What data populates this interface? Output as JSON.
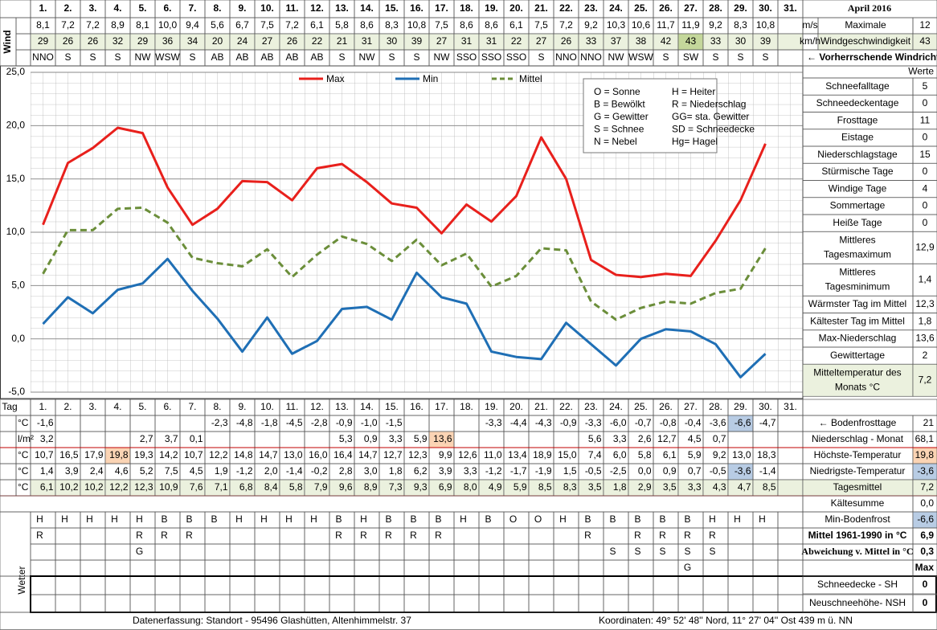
{
  "title": "April 2016",
  "wind": {
    "label": "Wind",
    "unit_ms": "m/s",
    "unit_kmh": "km/h",
    "ms": [
      "8,1",
      "7,2",
      "7,2",
      "8,9",
      "8,1",
      "10,0",
      "9,4",
      "5,6",
      "6,7",
      "7,5",
      "7,2",
      "6,1",
      "5,8",
      "8,6",
      "8,3",
      "10,8",
      "7,5",
      "8,6",
      "8,6",
      "6,1",
      "7,5",
      "7,2",
      "9,2",
      "10,3",
      "10,6",
      "11,7",
      "11,9",
      "9,2",
      "8,3",
      "10,8",
      null
    ],
    "kmh": [
      "29",
      "26",
      "26",
      "32",
      "29",
      "36",
      "34",
      "20",
      "24",
      "27",
      "26",
      "22",
      "21",
      "31",
      "30",
      "39",
      "27",
      "31",
      "31",
      "22",
      "27",
      "26",
      "33",
      "37",
      "38",
      "42",
      "43",
      "33",
      "30",
      "39",
      null
    ],
    "direction": [
      "NNO",
      "S",
      "S",
      "S",
      "NW",
      "WSW",
      "S",
      "AB",
      "AB",
      "AB",
      "AB",
      "AB",
      "S",
      "NW",
      "S",
      "S",
      "NW",
      "SSO",
      "SSO",
      "SSO",
      "S",
      "NNO",
      "NNO",
      "NW",
      "WSW",
      "S",
      "SW",
      "S",
      "S",
      "S",
      null
    ],
    "kmh_color": "#ebf1de",
    "kmh_highlight": {
      "index": 26,
      "color": "#c4d79b"
    },
    "max_label_1": "Maximale",
    "max_label_2": "Windgeschwindigkeit",
    "max_ms": "12",
    "max_kmh": "43",
    "prevailing_label": "← Vorherrschende Windrichtung"
  },
  "chart_data": {
    "type": "line",
    "categories": [
      "1.",
      "2.",
      "3.",
      "4.",
      "5.",
      "6.",
      "7.",
      "8.",
      "9.",
      "10.",
      "11.",
      "12.",
      "13.",
      "14.",
      "15.",
      "16.",
      "17.",
      "18.",
      "19.",
      "20.",
      "21.",
      "22.",
      "23.",
      "24.",
      "25.",
      "26.",
      "27.",
      "28.",
      "29.",
      "30.",
      "31."
    ],
    "ylim": [
      -5,
      25
    ],
    "yticks": [
      {
        "value": 25,
        "label": "25,0"
      },
      {
        "value": 20,
        "label": "20,0"
      },
      {
        "value": 15,
        "label": "15,0"
      },
      {
        "value": 10,
        "label": "10,0"
      },
      {
        "value": 5,
        "label": "5,0"
      },
      {
        "value": 0,
        "label": "0,0"
      },
      {
        "value": -5,
        "label": "-5,0"
      }
    ],
    "grid": true,
    "series": [
      {
        "name": "Max",
        "color": "#e8201c",
        "dash": false,
        "values": [
          10.7,
          16.5,
          17.9,
          19.8,
          19.3,
          14.2,
          10.7,
          12.2,
          14.8,
          14.7,
          13.0,
          16.0,
          16.4,
          14.7,
          12.7,
          12.3,
          9.9,
          12.6,
          11.0,
          13.4,
          18.9,
          15.0,
          7.4,
          6.0,
          5.8,
          6.1,
          5.9,
          9.2,
          13.0,
          18.3,
          null
        ],
        "value_labels": [
          "10,7",
          "16,5",
          "17,9",
          "19,8",
          "19,3",
          "14,2",
          "10,7",
          "12,2",
          "14,8",
          "14,7",
          "13,0",
          "16,0",
          "16,4",
          "14,7",
          "12,7",
          "12,3",
          "9,9",
          "12,6",
          "11,0",
          "13,4",
          "18,9",
          "15,0",
          "7,4",
          "6,0",
          "5,8",
          "6,1",
          "5,9",
          "9,2",
          "13,0",
          "18,3",
          null
        ]
      },
      {
        "name": "Min",
        "color": "#1f6fb5",
        "dash": false,
        "values": [
          1.4,
          3.9,
          2.4,
          4.6,
          5.2,
          7.5,
          4.5,
          1.9,
          -1.2,
          2.0,
          -1.4,
          -0.2,
          2.8,
          3.0,
          1.8,
          6.2,
          3.9,
          3.3,
          -1.2,
          -1.7,
          -1.9,
          1.5,
          -0.5,
          -2.5,
          0.0,
          0.9,
          0.7,
          -0.5,
          -3.6,
          -1.4,
          null
        ],
        "value_labels": [
          "1,4",
          "3,9",
          "2,4",
          "4,6",
          "5,2",
          "7,5",
          "4,5",
          "1,9",
          "-1,2",
          "2,0",
          "-1,4",
          "-0,2",
          "2,8",
          "3,0",
          "1,8",
          "6,2",
          "3,9",
          "3,3",
          "-1,2",
          "-1,7",
          "-1,9",
          "1,5",
          "-0,5",
          "-2,5",
          "0,0",
          "0,9",
          "0,7",
          "-0,5",
          "-3,6",
          "-1,4",
          null
        ]
      },
      {
        "name": "Mittel",
        "color": "#6b8e3a",
        "dash": true,
        "values": [
          6.1,
          10.2,
          10.2,
          12.2,
          12.3,
          10.9,
          7.6,
          7.1,
          6.8,
          8.4,
          5.8,
          7.9,
          9.6,
          8.9,
          7.3,
          9.3,
          6.9,
          8.0,
          4.9,
          5.9,
          8.5,
          8.3,
          3.5,
          1.8,
          2.9,
          3.5,
          3.3,
          4.3,
          4.7,
          8.5,
          null
        ],
        "value_labels": [
          "6,1",
          "10,2",
          "10,2",
          "12,2",
          "12,3",
          "10,9",
          "7,6",
          "7,1",
          "6,8",
          "8,4",
          "5,8",
          "7,9",
          "9,6",
          "8,9",
          "7,3",
          "9,3",
          "6,9",
          "8,0",
          "4,9",
          "5,9",
          "8,5",
          "8,3",
          "3,5",
          "1,8",
          "2,9",
          "3,5",
          "3,3",
          "4,3",
          "4,7",
          "8,5",
          null
        ]
      }
    ],
    "annotations": [
      [
        "O = Sonne",
        "H = Heiter"
      ],
      [
        "B = Bewölkt",
        "R = Niederschlag"
      ],
      [
        "G = Gewitter",
        "GG= sta. Gewitter"
      ],
      [
        "S = Schnee",
        "SD = Schneedecke"
      ],
      [
        "N = Nebel",
        "Hg= Hagel"
      ]
    ]
  },
  "stats": {
    "header": "Werte",
    "rows": [
      {
        "label": [
          "Schneefalltage"
        ],
        "value": "5"
      },
      {
        "label": [
          "Schneedeckentage"
        ],
        "value": "0"
      },
      {
        "label": [
          "Frosttage"
        ],
        "value": "11"
      },
      {
        "label": [
          "Eistage"
        ],
        "value": "0"
      },
      {
        "label": [
          "Niederschlagstage"
        ],
        "value": "15"
      },
      {
        "label": [
          "Stürmische Tage"
        ],
        "value": "0"
      },
      {
        "label": [
          "Windige Tage"
        ],
        "value": "4"
      },
      {
        "label": [
          "Sommertage"
        ],
        "value": "0"
      },
      {
        "label": [
          "Heiße Tage"
        ],
        "value": "0"
      },
      {
        "label": [
          "Mittleres",
          "Tagesmaximum"
        ],
        "value": "12,9"
      },
      {
        "label": [
          "Mittleres",
          "Tagesminimum"
        ],
        "value": "1,4"
      },
      {
        "label": [
          "Wärmster Tag im Mittel"
        ],
        "value": "12,3"
      },
      {
        "label": [
          "Kältester Tag im Mittel"
        ],
        "value": "1,8"
      },
      {
        "label": [
          "Max-Niederschlag"
        ],
        "value": "13,6"
      },
      {
        "label": [
          "Gewittertage"
        ],
        "value": "2"
      },
      {
        "label": [
          "Mitteltemperatur des",
          "Monats °C"
        ],
        "value": "7,2",
        "color": "#ebf1de"
      }
    ]
  },
  "daily": {
    "tag_label": "Tag",
    "frost": {
      "unit": "°C",
      "cells": [
        "-1,6",
        null,
        null,
        null,
        null,
        null,
        null,
        "-2,3",
        "-4,8",
        "-1,8",
        "-4,5",
        "-2,8",
        "-0,9",
        "-1,0",
        "-1,5",
        null,
        null,
        null,
        "-3,3",
        "-4,4",
        "-4,3",
        "-0,9",
        "-3,3",
        "-6,0",
        "-0,7",
        "-0,8",
        "-0,4",
        "-3,6",
        "-6,6",
        "-4,7",
        null
      ],
      "label": "← Bodenfrosttage",
      "value": "21",
      "highlight": {
        "index": 28,
        "color": "#b8cce4"
      }
    },
    "precip": {
      "unit": "l/m²",
      "cells": [
        "3,2",
        null,
        null,
        null,
        "2,7",
        "3,7",
        "0,1",
        null,
        null,
        null,
        null,
        null,
        "5,3",
        "0,9",
        "3,3",
        "5,9",
        "13,6",
        null,
        null,
        null,
        null,
        null,
        "5,6",
        "3,3",
        "2,6",
        "12,7",
        "4,5",
        "0,7",
        null,
        null,
        null
      ],
      "label": "Niederschlag - Monat",
      "value": "68,1",
      "highlight": {
        "index": 16,
        "color": "#fbd4b4"
      }
    },
    "max": {
      "unit": "°C",
      "label": "Höchste-Temperatur",
      "value": "19,8",
      "value_color": "#fbd4b4",
      "highlight": {
        "index": 3,
        "color": "#fbd4b4"
      }
    },
    "min": {
      "unit": "°C",
      "label": "Niedrigste-Temperatur",
      "value": "-3,6",
      "value_color": "#b8cce4",
      "highlight": {
        "index": 28,
        "color": "#b8cce4"
      }
    },
    "mean": {
      "unit": "°C",
      "label": "Tagesmittel",
      "value": "7,2",
      "color": "#ebf1de"
    },
    "kaelte": {
      "label": "Kältesumme",
      "value": "0,0"
    }
  },
  "weather": {
    "label": "Wetter",
    "rows": [
      [
        "H",
        "H",
        "H",
        "H",
        "H",
        "B",
        "B",
        "B",
        "H",
        "H",
        "H",
        "H",
        "B",
        "H",
        "B",
        "B",
        "B",
        "H",
        "B",
        "O",
        "O",
        "H",
        "B",
        "B",
        "B",
        "B",
        "B",
        "H",
        "H",
        "H",
        null
      ],
      [
        "R",
        null,
        null,
        null,
        "R",
        "R",
        "R",
        null,
        null,
        null,
        null,
        null,
        "R",
        "R",
        "R",
        "R",
        "R",
        null,
        null,
        null,
        null,
        null,
        "R",
        null,
        "R",
        "R",
        "R",
        "R",
        null,
        null,
        null
      ],
      [
        null,
        null,
        null,
        null,
        "G",
        null,
        null,
        null,
        null,
        null,
        null,
        null,
        null,
        null,
        null,
        null,
        null,
        null,
        null,
        null,
        null,
        null,
        null,
        "S",
        "S",
        "S",
        "S",
        "S",
        null,
        null,
        null
      ],
      [
        null,
        null,
        null,
        null,
        null,
        null,
        null,
        null,
        null,
        null,
        null,
        null,
        null,
        null,
        null,
        null,
        null,
        null,
        null,
        null,
        null,
        null,
        null,
        null,
        null,
        null,
        "G",
        null,
        null,
        null,
        null
      ]
    ],
    "summaries": [
      {
        "label": "Min-Bodenfrost",
        "value": "-6,6",
        "value_color": "#b8cce4"
      },
      {
        "label": "Mittel 1961-1990 in °C",
        "value": "6,9",
        "bold": true
      },
      {
        "label": "Abweichung v. Mittel in °C",
        "value": "0,3",
        "bold": true,
        "color": "#e00000"
      },
      {
        "value": "Max",
        "bold": true
      }
    ]
  },
  "snow": [
    {
      "label": "Schneedecke -  SH",
      "value": "0"
    },
    {
      "label": "Neuschneehöhe- NSH",
      "value": "0"
    }
  ],
  "footer": {
    "left": "Datenerfassung:  Standort -  95496  Glashütten, Altenhimmelstr. 37",
    "right": "Koordinaten:  49° 52' 48'' Nord,   11° 27' 04'' Ost   439 m ü. NN"
  }
}
